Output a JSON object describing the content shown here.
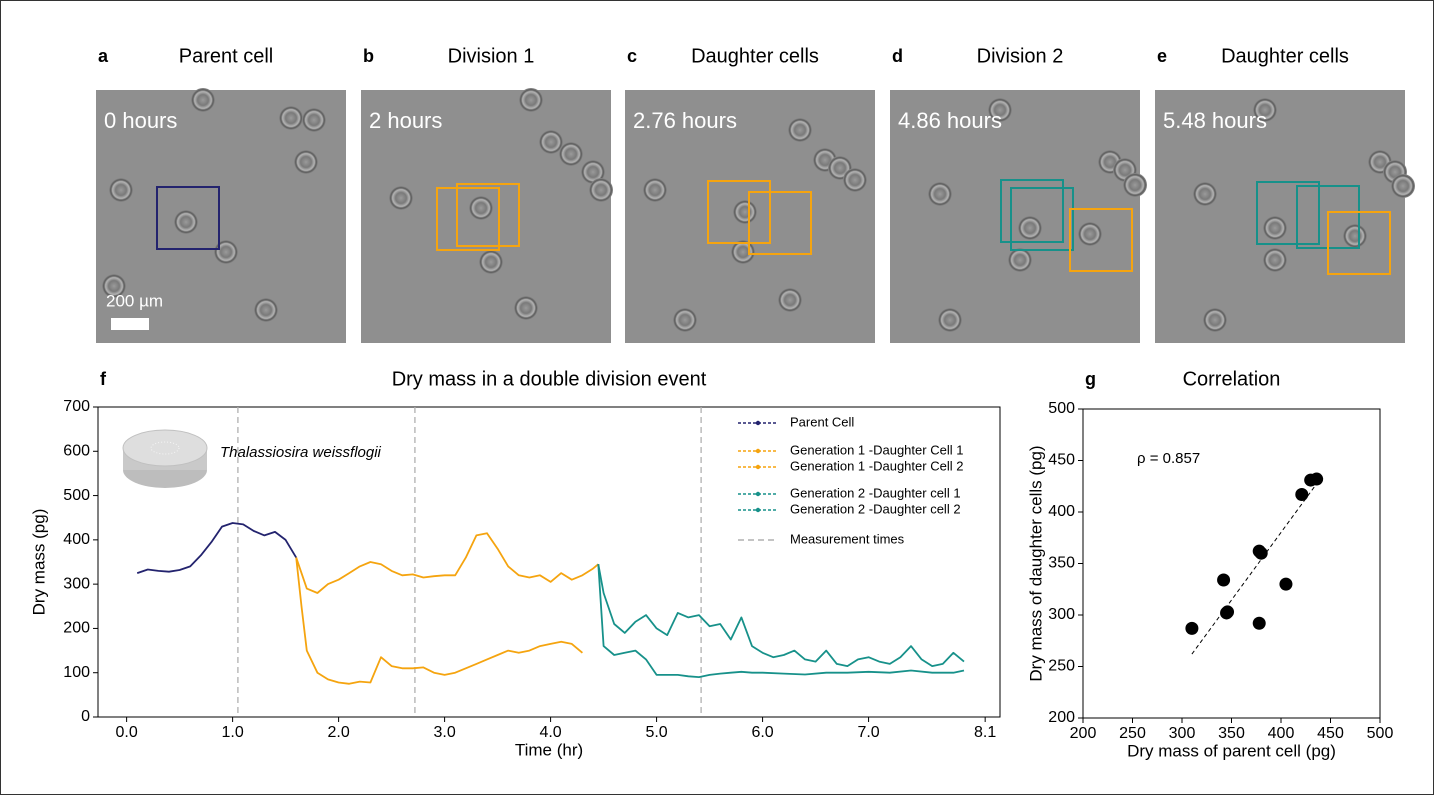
{
  "panels": [
    {
      "letter": "a",
      "title": "Parent cell",
      "time": "0 hours",
      "scale_bar": "200 µm"
    },
    {
      "letter": "b",
      "title": "Division 1",
      "time": "2 hours"
    },
    {
      "letter": "c",
      "title": "Daughter cells",
      "time": "2.76 hours"
    },
    {
      "letter": "d",
      "title": "Division 2",
      "time": "4.86 hours"
    },
    {
      "letter": "e",
      "title": "Daughter cells",
      "time": "5.48 hours"
    }
  ],
  "chart_data": [
    {
      "type": "line",
      "label": "f",
      "title": "Dry mass in a double division event",
      "x_label": "Time (hr)",
      "y_label": "Dry mass (pg)",
      "annotation": "Thalassiosira weissflogii",
      "xlim": [
        -0.27,
        8.24
      ],
      "ylim": [
        0,
        700
      ],
      "xticks": [
        {
          "value": 0,
          "label": "0.0"
        },
        {
          "value": 1,
          "label": "1.0"
        },
        {
          "value": 2,
          "label": "2.0"
        },
        {
          "value": 3,
          "label": "3.0"
        },
        {
          "value": 4,
          "label": "4.0"
        },
        {
          "value": 5,
          "label": "5.0"
        },
        {
          "value": 6,
          "label": "6.0"
        },
        {
          "value": 7,
          "label": "7.0"
        },
        8.1
      ],
      "yticks": [
        0,
        100,
        200,
        300,
        400,
        500,
        600,
        700
      ],
      "grid": false,
      "legend": "upper right",
      "series": [
        {
          "name": "Parent Cell",
          "color": "#23236e",
          "x": [
            0.1,
            0.2,
            0.3,
            0.4,
            0.5,
            0.6,
            0.7,
            0.8,
            0.9,
            1.0,
            1.1,
            1.2,
            1.3,
            1.4,
            1.5,
            1.6
          ],
          "values": [
            325,
            333,
            330,
            328,
            332,
            340,
            365,
            395,
            430,
            438,
            435,
            420,
            410,
            418,
            400,
            360
          ]
        },
        {
          "name": "Generation 1 -Daughter Cell 1",
          "color": "#f5a40f",
          "x": [
            1.6,
            1.7,
            1.8,
            1.9,
            2.0,
            2.1,
            2.2,
            2.3,
            2.4,
            2.5,
            2.6,
            2.7,
            2.8,
            2.9,
            3.0,
            3.1,
            3.2,
            3.3,
            3.4,
            3.5,
            3.6,
            3.7,
            3.8,
            3.9,
            4.0,
            4.1,
            4.2,
            4.3,
            4.4,
            4.45
          ],
          "values": [
            360,
            290,
            280,
            300,
            310,
            325,
            340,
            350,
            345,
            330,
            320,
            322,
            315,
            318,
            320,
            320,
            360,
            410,
            415,
            380,
            340,
            320,
            315,
            320,
            305,
            325,
            310,
            320,
            335,
            345
          ]
        },
        {
          "name": "Generation 1 -Daughter Cell 2",
          "color": "#f5a40f",
          "x": [
            1.6,
            1.65,
            1.7,
            1.8,
            1.9,
            2.0,
            2.1,
            2.2,
            2.3,
            2.4,
            2.5,
            2.6,
            2.7,
            2.8,
            2.9,
            3.0,
            3.1,
            3.2,
            3.3,
            3.4,
            3.5,
            3.6,
            3.7,
            3.8,
            3.9,
            4.0,
            4.1,
            4.2,
            4.3
          ],
          "values": [
            360,
            250,
            150,
            100,
            85,
            78,
            75,
            80,
            78,
            135,
            115,
            110,
            110,
            112,
            100,
            95,
            100,
            110,
            120,
            130,
            140,
            150,
            145,
            150,
            160,
            165,
            170,
            165,
            145
          ]
        },
        {
          "name": "Generation 2 -Daughter cell 1",
          "color": "#17918a",
          "x": [
            4.45,
            4.5,
            4.6,
            4.7,
            4.8,
            4.9,
            5.0,
            5.1,
            5.2,
            5.3,
            5.4,
            5.5,
            5.6,
            5.7,
            5.8,
            5.9,
            6.0,
            6.1,
            6.2,
            6.3,
            6.4,
            6.5,
            6.6,
            6.7,
            6.8,
            6.9,
            7.0,
            7.1,
            7.2,
            7.3,
            7.4,
            7.5,
            7.6,
            7.7,
            7.8,
            7.9
          ],
          "values": [
            345,
            280,
            210,
            190,
            215,
            230,
            200,
            185,
            235,
            225,
            230,
            205,
            210,
            175,
            225,
            160,
            145,
            135,
            140,
            150,
            130,
            125,
            150,
            120,
            115,
            130,
            135,
            125,
            120,
            135,
            160,
            130,
            115,
            120,
            145,
            125
          ]
        },
        {
          "name": "Generation 2 -Daughter cell 2",
          "color": "#17918a",
          "x": [
            4.45,
            4.5,
            4.6,
            4.7,
            4.8,
            4.9,
            5.0,
            5.1,
            5.2,
            5.3,
            5.4,
            5.5,
            5.6,
            5.7,
            5.8,
            5.9,
            6.0,
            6.2,
            6.4,
            6.6,
            6.8,
            7.0,
            7.2,
            7.4,
            7.6,
            7.8,
            7.9
          ],
          "values": [
            345,
            160,
            140,
            145,
            150,
            130,
            95,
            95,
            95,
            92,
            90,
            95,
            98,
            100,
            102,
            100,
            100,
            98,
            96,
            100,
            100,
            102,
            100,
            105,
            100,
            100,
            105
          ]
        }
      ],
      "vlines": {
        "name": "Measurement times",
        "color": "#b0b0b0",
        "values": [
          1.05,
          2.72,
          5.42
        ]
      }
    },
    {
      "type": "scatter",
      "label": "g",
      "title": "Correlation",
      "x_label": "Dry mass of parent cell (pg)",
      "y_label": "Dry mass of daughter cells (pg)",
      "annotation": "ρ = 0.857",
      "xlim": [
        200,
        500
      ],
      "ylim": [
        200,
        500
      ],
      "xticks": [
        200,
        250,
        300,
        350,
        400,
        450,
        500
      ],
      "yticks": [
        200,
        250,
        300,
        350,
        400,
        450,
        500
      ],
      "grid": false,
      "color": "#000000",
      "x": [
        310,
        342,
        345,
        346,
        378,
        378,
        380,
        405,
        421,
        430,
        436
      ],
      "values": [
        287,
        334,
        302,
        303,
        292,
        362,
        360,
        330,
        417,
        431,
        432
      ],
      "trendline": {
        "x": [
          310,
          438
        ],
        "values": [
          262,
          430
        ]
      }
    }
  ]
}
